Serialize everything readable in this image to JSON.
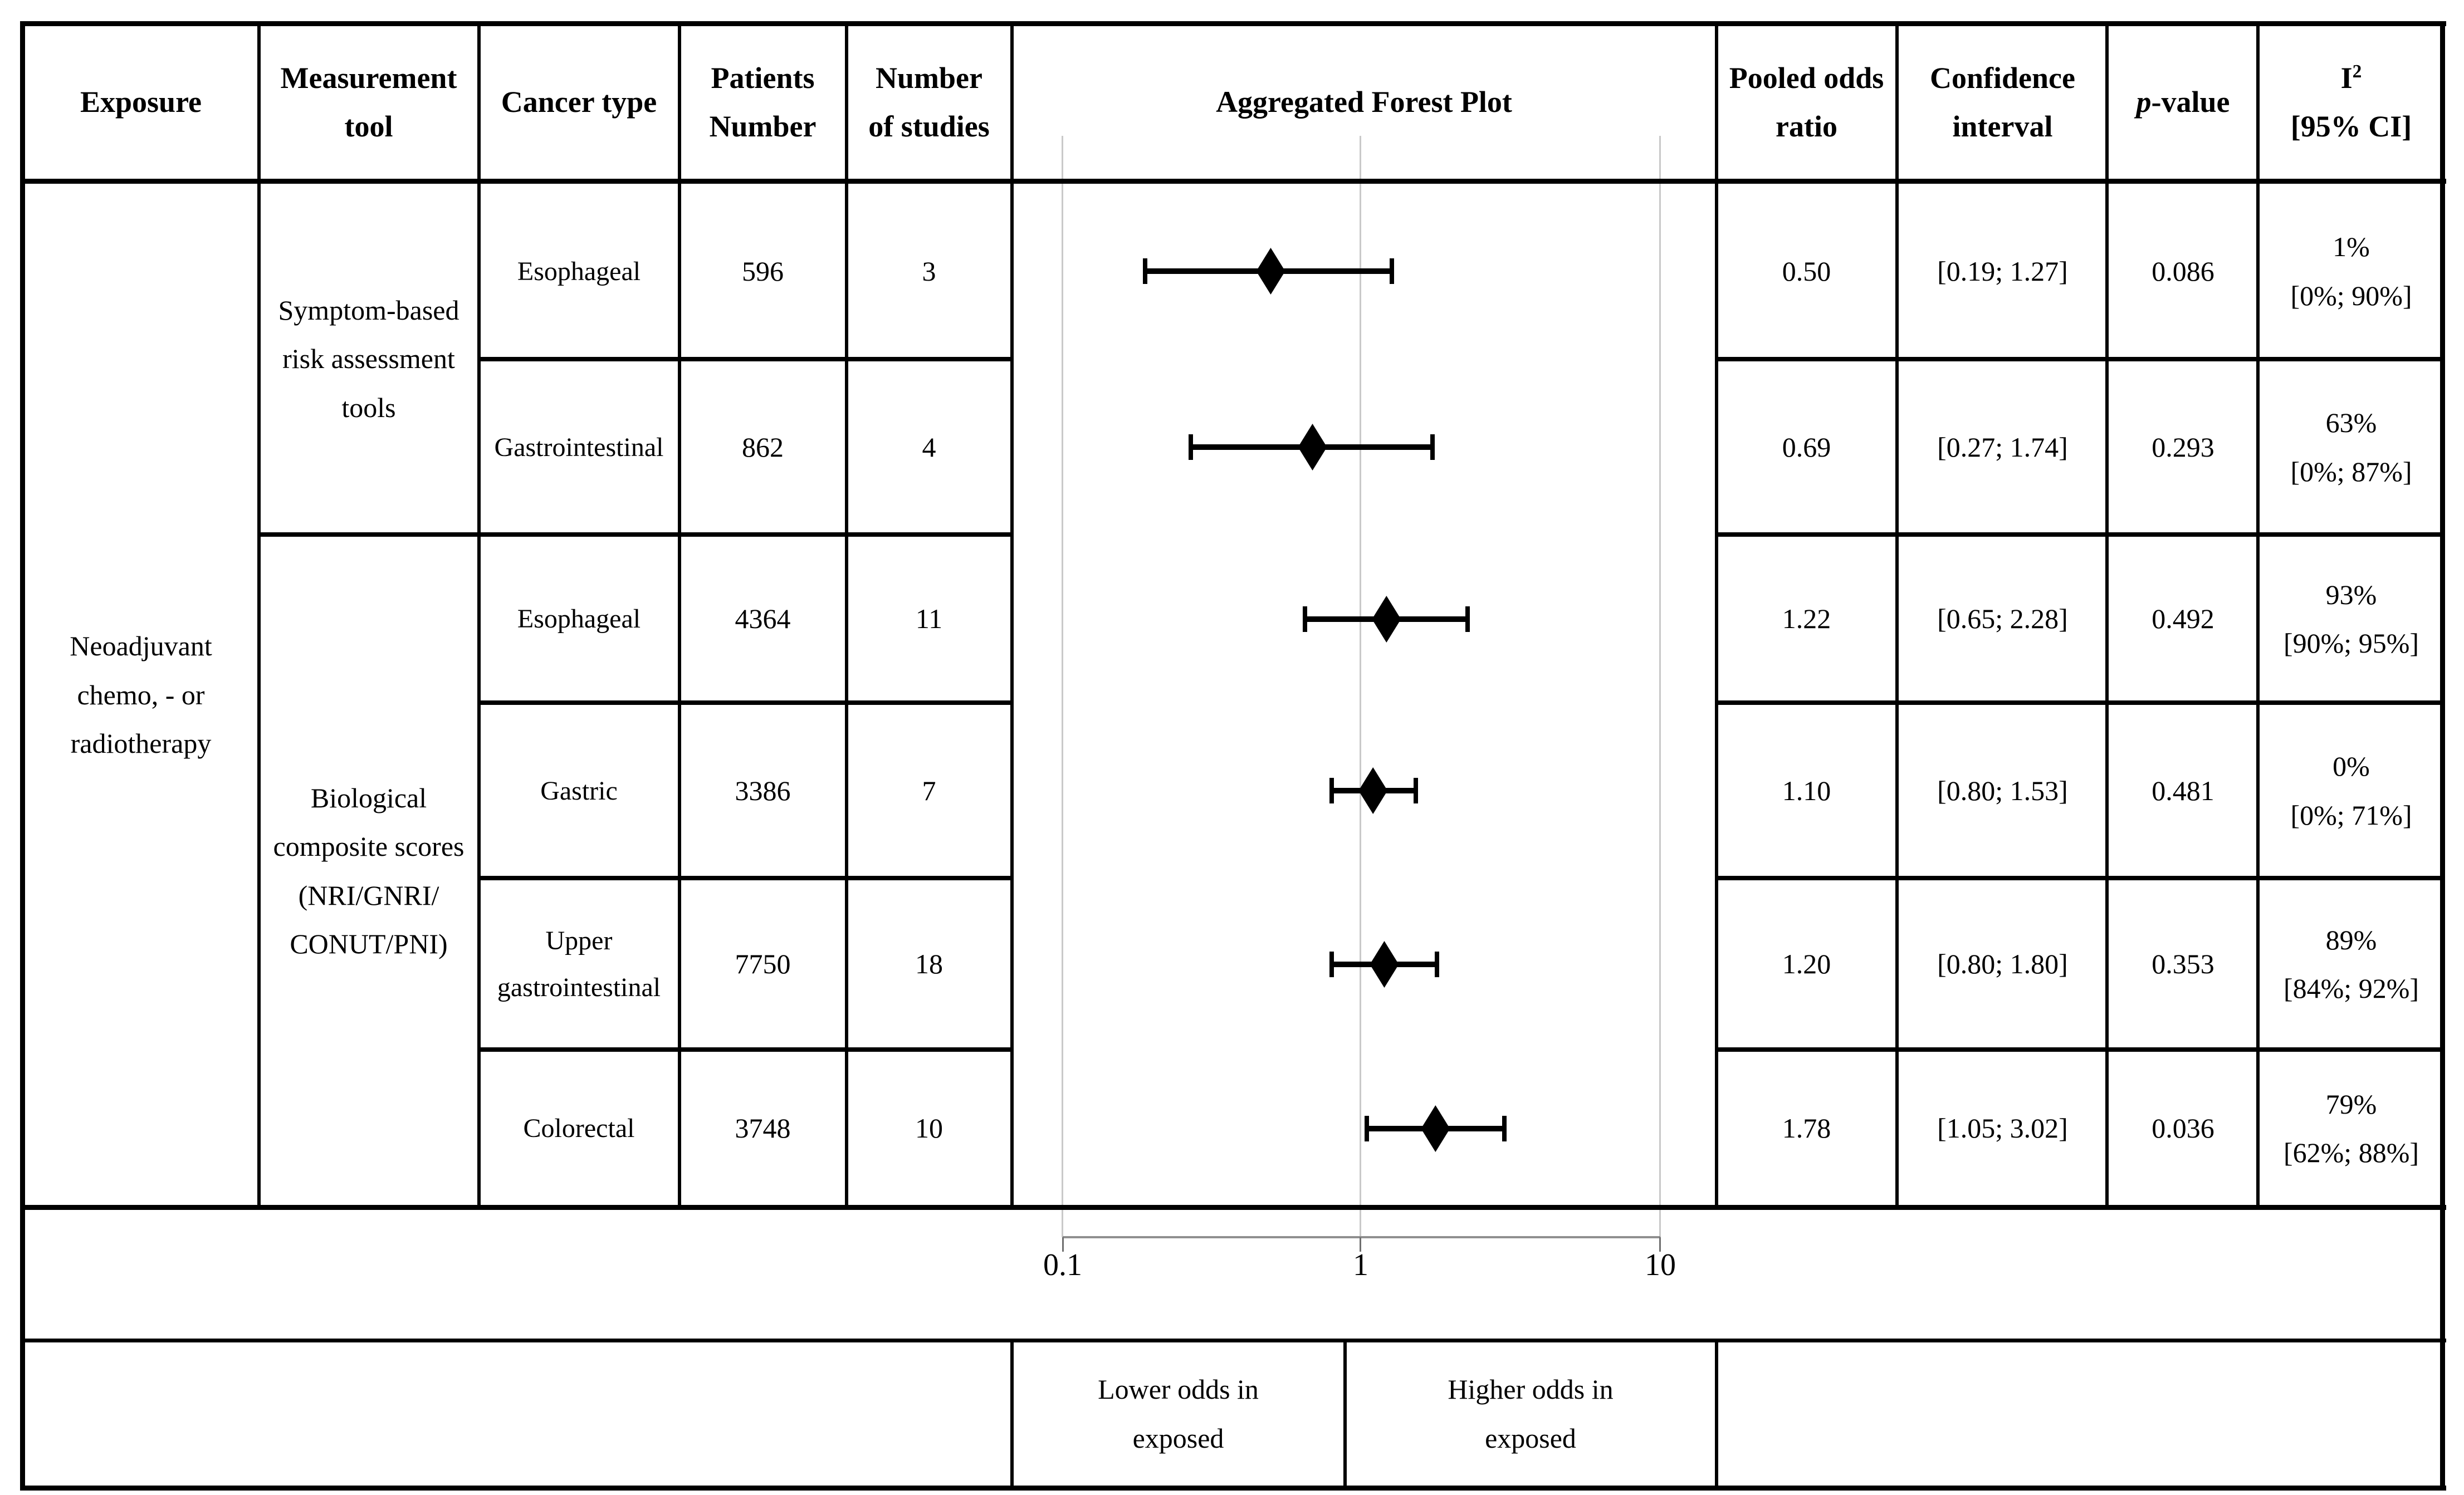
{
  "title": "Aggregated Forest Plot",
  "colors": {
    "border": "#000000",
    "gridline": "#c9c9c9",
    "axis_line": "#8f8f8f",
    "marker": "#000000"
  },
  "table": {
    "headers": {
      "exposure": "Exposure",
      "measurement_tool": [
        "Measurement",
        "tool"
      ],
      "cancer_type": "Cancer type",
      "patients": [
        "Patients",
        "Number"
      ],
      "studies": [
        "Number",
        "of studies"
      ],
      "forest_plot": "Aggregated Forest Plot",
      "pooled_or": [
        "Pooled odds",
        "ratio"
      ],
      "ci": [
        "Confidence",
        "interval"
      ],
      "p_italic": "p",
      "p_rest": "-value",
      "i2_base": "I",
      "i2_sup": "2",
      "i2_ci": "[95% CI]"
    },
    "exposure_lines": [
      "Neoadjuvant",
      "chemo, - or",
      "radiotherapy"
    ],
    "tools": [
      {
        "lines": [
          "Symptom-based",
          "risk assessment",
          "tools"
        ]
      },
      {
        "lines": [
          "Biological",
          "composite scores",
          "(NRI/GNRI/",
          "CONUT/PNI)"
        ]
      }
    ],
    "rows": [
      {
        "cancer_lines": [
          "Esophageal"
        ],
        "patients": "596",
        "studies": "3",
        "or": "0.50",
        "ci": "[0.19; 1.27]",
        "p": "0.086",
        "i2": "1%",
        "i2_ci": "[0%; 90%]"
      },
      {
        "cancer_lines": [
          "Gastrointestinal"
        ],
        "patients": "862",
        "studies": "4",
        "or": "0.69",
        "ci": "[0.27; 1.74]",
        "p": "0.293",
        "i2": "63%",
        "i2_ci": "[0%; 87%]"
      },
      {
        "cancer_lines": [
          "Esophageal"
        ],
        "patients": "4364",
        "studies": "11",
        "or": "1.22",
        "ci": "[0.65; 2.28]",
        "p": "0.492",
        "i2": "93%",
        "i2_ci": "[90%; 95%]"
      },
      {
        "cancer_lines": [
          "Gastric"
        ],
        "patients": "3386",
        "studies": "7",
        "or": "1.10",
        "ci": "[0.80; 1.53]",
        "p": "0.481",
        "i2": "0%",
        "i2_ci": "[0%; 71%]"
      },
      {
        "cancer_lines": [
          "Upper",
          "gastrointestinal"
        ],
        "patients": "7750",
        "studies": "18",
        "or": "1.20",
        "ci": "[0.80; 1.80]",
        "p": "0.353",
        "i2": "89%",
        "i2_ci": "[84%; 92%]"
      },
      {
        "cancer_lines": [
          "Colorectal"
        ],
        "patients": "3748",
        "studies": "10",
        "or": "1.78",
        "ci": "[1.05; 3.02]",
        "p": "0.036",
        "i2": "79%",
        "i2_ci": "[62%; 88%]"
      }
    ]
  },
  "axis": {
    "ticks": [
      "0.1",
      "1",
      "10"
    ]
  },
  "footer": {
    "lower_lines": [
      "Lower odds in",
      "exposed"
    ],
    "higher_lines": [
      "Higher odds in",
      "exposed"
    ]
  },
  "chart_data": {
    "type": "forest",
    "title": "Aggregated Forest Plot",
    "x_scale": "log",
    "xlim": [
      0.1,
      10
    ],
    "x_ticks": [
      0.1,
      1,
      10
    ],
    "grid": true,
    "categories": [
      "Esophageal",
      "Gastrointestinal",
      "Esophageal",
      "Gastric",
      "Upper gastrointestinal",
      "Colorectal"
    ],
    "rows": [
      {
        "or": 0.5,
        "ci_low": 0.19,
        "ci_high": 1.27
      },
      {
        "or": 0.69,
        "ci_low": 0.27,
        "ci_high": 1.74
      },
      {
        "or": 1.22,
        "ci_low": 0.65,
        "ci_high": 2.28
      },
      {
        "or": 1.1,
        "ci_low": 0.8,
        "ci_high": 1.53
      },
      {
        "or": 1.2,
        "ci_low": 0.8,
        "ci_high": 1.8
      },
      {
        "or": 1.78,
        "ci_low": 1.05,
        "ci_high": 3.02
      }
    ],
    "annotations": {
      "left": "Lower odds in exposed",
      "right": "Higher odds in exposed"
    }
  }
}
